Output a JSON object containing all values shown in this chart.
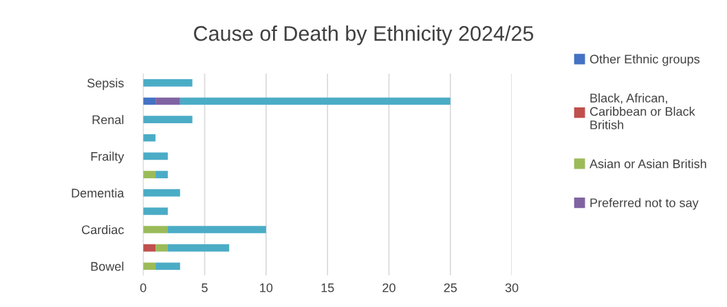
{
  "chart_data": {
    "type": "bar",
    "title": "Cause of Death by Ethnicity 2024/25",
    "orientation": "horizontal",
    "stacked": true,
    "categories": [
      "Sepsis",
      null,
      "Renal",
      null,
      "Frailty",
      null,
      "Dementia",
      null,
      "Cardiac",
      null,
      "Bowel"
    ],
    "series": [
      {
        "name": "Other Ethnic groups",
        "color": "#4472c4",
        "values": [
          0,
          1,
          0,
          0,
          0,
          0,
          0,
          0,
          0,
          0,
          0
        ]
      },
      {
        "name": "Black, African, Caribbean or Black British",
        "color": "#c0504d",
        "values": [
          0,
          0,
          0,
          0,
          0,
          0,
          0,
          0,
          0,
          1,
          0
        ]
      },
      {
        "name": "Asian or Asian British",
        "color": "#9bbb59",
        "values": [
          0,
          0,
          0,
          0,
          0,
          1,
          0,
          0,
          2,
          1,
          1
        ]
      },
      {
        "name": "Preferred not to say",
        "color": "#8064a2",
        "values": [
          0,
          2,
          0,
          0,
          0,
          0,
          0,
          0,
          0,
          0,
          0
        ]
      },
      {
        "color": "#4bacc6",
        "values": [
          4,
          22,
          4,
          1,
          2,
          1,
          3,
          2,
          8,
          5,
          2
        ]
      }
    ],
    "xlim": [
      0,
      30
    ],
    "xticks": [
      0,
      5,
      10,
      15,
      20,
      25,
      30
    ],
    "grid": "x",
    "legend": "right"
  }
}
